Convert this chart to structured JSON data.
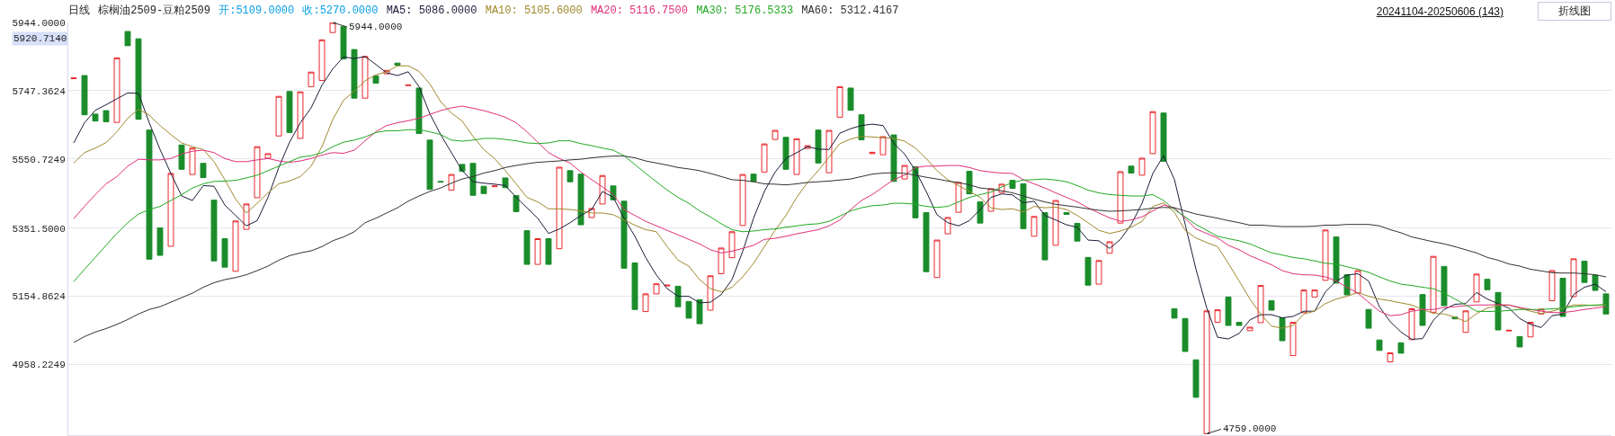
{
  "chart_data": {
    "type": "candlestick",
    "title": "日线",
    "subtitle": "棕榈油2509-豆粕2509",
    "categories": [
      null,
      null,
      null,
      null,
      null,
      null,
      null,
      null,
      null,
      null,
      null,
      null,
      null,
      null,
      null,
      null,
      null,
      null,
      null,
      null,
      null,
      null,
      null,
      null,
      null,
      null,
      null,
      null,
      null,
      null,
      null,
      null,
      null,
      null,
      null,
      null,
      null,
      null,
      null,
      null,
      null,
      null,
      null,
      null,
      null,
      null,
      null,
      null,
      null,
      null,
      null,
      null,
      null,
      null,
      null,
      null,
      null,
      null,
      null,
      null,
      null,
      null,
      null,
      null,
      null,
      null,
      null,
      null,
      null,
      null,
      null,
      null,
      null,
      null,
      null,
      null,
      null,
      null,
      null,
      null,
      null,
      null,
      null,
      null,
      null,
      null,
      null,
      null,
      null,
      null,
      null,
      null,
      null,
      null,
      null,
      null,
      null,
      null,
      null,
      null,
      null,
      null,
      null,
      null,
      null,
      null,
      null,
      null,
      null,
      null,
      null,
      null,
      null,
      null,
      null,
      null,
      null,
      null,
      null,
      null,
      null,
      null,
      null,
      null,
      null,
      null,
      null,
      null,
      null,
      null,
      null,
      null,
      null,
      null,
      null,
      null,
      null,
      null,
      null,
      null,
      null,
      null,
      null
    ],
    "ohlc": [
      [
        5782,
        5784,
        5782,
        5784
      ],
      [
        5791,
        5791,
        5678,
        5678
      ],
      [
        5680,
        5680,
        5660,
        5660
      ],
      [
        5690,
        5690,
        5658,
        5658
      ],
      [
        5656,
        5842,
        5656,
        5842
      ],
      [
        5918,
        5918,
        5877,
        5877
      ],
      [
        5897,
        5897,
        5665,
        5665
      ],
      [
        5634,
        5634,
        5262,
        5262
      ],
      [
        5352,
        5352,
        5273,
        5273
      ],
      [
        5299,
        5509,
        5299,
        5509
      ],
      [
        5591,
        5591,
        5521,
        5521
      ],
      [
        5506,
        5582,
        5506,
        5582
      ],
      [
        5538,
        5538,
        5497,
        5497
      ],
      [
        5432,
        5432,
        5257,
        5257
      ],
      [
        5321,
        5321,
        5239,
        5239
      ],
      [
        5227,
        5372,
        5227,
        5372
      ],
      [
        5348,
        5421,
        5348,
        5421
      ],
      [
        5439,
        5586,
        5439,
        5586
      ],
      [
        5553,
        5566,
        5553,
        5566
      ],
      [
        5617,
        5731,
        5617,
        5731
      ],
      [
        5745,
        5745,
        5627,
        5627
      ],
      [
        5610,
        5744,
        5610,
        5744
      ],
      [
        5759,
        5801,
        5759,
        5801
      ],
      [
        5777,
        5894,
        5777,
        5894
      ],
      [
        5915,
        5944,
        5915,
        5944
      ],
      [
        5932,
        5932,
        5839,
        5839
      ],
      [
        5866,
        5866,
        5726,
        5726
      ],
      [
        5726,
        5846,
        5726,
        5846
      ],
      [
        5790,
        5790,
        5769,
        5769
      ],
      [
        5796,
        5806,
        5796,
        5806
      ],
      [
        5827,
        5827,
        5821,
        5821
      ],
      [
        5762,
        5764,
        5762,
        5764
      ],
      [
        5755,
        5755,
        5624,
        5624
      ],
      [
        5605,
        5605,
        5463,
        5463
      ],
      [
        5486,
        5486,
        5484,
        5484
      ],
      [
        5461,
        5506,
        5461,
        5506
      ],
      [
        5535,
        5535,
        5515,
        5515
      ],
      [
        5538,
        5538,
        5446,
        5446
      ],
      [
        5472,
        5472,
        5451,
        5451
      ],
      [
        5471,
        5473,
        5471,
        5473
      ],
      [
        5496,
        5496,
        5468,
        5468
      ],
      [
        5445,
        5445,
        5399,
        5399
      ],
      [
        5344,
        5344,
        5247,
        5247
      ],
      [
        5247,
        5321,
        5247,
        5321
      ],
      [
        5321,
        5321,
        5247,
        5247
      ],
      [
        5292,
        5527,
        5292,
        5527
      ],
      [
        5517,
        5517,
        5485,
        5485
      ],
      [
        5507,
        5507,
        5361,
        5361
      ],
      [
        5382,
        5408,
        5382,
        5408
      ],
      [
        5421,
        5503,
        5421,
        5503
      ],
      [
        5473,
        5473,
        5433,
        5433
      ],
      [
        5429,
        5429,
        5236,
        5236
      ],
      [
        5251,
        5251,
        5117,
        5117
      ],
      [
        5111,
        5162,
        5111,
        5162
      ],
      [
        5162,
        5191,
        5162,
        5191
      ],
      [
        5185,
        5187,
        5185,
        5187
      ],
      [
        5184,
        5184,
        5125,
        5125
      ],
      [
        5140,
        5140,
        5092,
        5092
      ],
      [
        5145,
        5145,
        5076,
        5076
      ],
      [
        5115,
        5214,
        5115,
        5214
      ],
      [
        5220,
        5294,
        5220,
        5294
      ],
      [
        5266,
        5341,
        5266,
        5341
      ],
      [
        5359,
        5506,
        5359,
        5506
      ],
      [
        5507,
        5507,
        5486,
        5486
      ],
      [
        5513,
        5594,
        5513,
        5594
      ],
      [
        5607,
        5633,
        5607,
        5633
      ],
      [
        5613,
        5613,
        5521,
        5521
      ],
      [
        5506,
        5609,
        5506,
        5609
      ],
      [
        5581,
        5589,
        5581,
        5589
      ],
      [
        5634,
        5634,
        5539,
        5539
      ],
      [
        5511,
        5633,
        5511,
        5633
      ],
      [
        5671,
        5759,
        5671,
        5759
      ],
      [
        5755,
        5755,
        5691,
        5691
      ],
      [
        5678,
        5678,
        5606,
        5606
      ],
      [
        5566,
        5570,
        5566,
        5570
      ],
      [
        5563,
        5615,
        5563,
        5615
      ],
      [
        5620,
        5620,
        5486,
        5486
      ],
      [
        5493,
        5532,
        5493,
        5532
      ],
      [
        5528,
        5528,
        5381,
        5381
      ],
      [
        5396,
        5396,
        5226,
        5226
      ],
      [
        5209,
        5317,
        5209,
        5317
      ],
      [
        5335,
        5382,
        5335,
        5382
      ],
      [
        5397,
        5483,
        5397,
        5483
      ],
      [
        5515,
        5515,
        5450,
        5450
      ],
      [
        5427,
        5427,
        5366,
        5366
      ],
      [
        5400,
        5465,
        5400,
        5465
      ],
      [
        5454,
        5478,
        5454,
        5478
      ],
      [
        5489,
        5489,
        5466,
        5466
      ],
      [
        5479,
        5479,
        5350,
        5350
      ],
      [
        5328,
        5385,
        5328,
        5385
      ],
      [
        5396,
        5396,
        5260,
        5260
      ],
      [
        5302,
        5431,
        5302,
        5431
      ],
      [
        5396,
        5396,
        5391,
        5391
      ],
      [
        5365,
        5365,
        5314,
        5314
      ],
      [
        5267,
        5267,
        5187,
        5187
      ],
      [
        5190,
        5258,
        5190,
        5258
      ],
      [
        5279,
        5312,
        5279,
        5312
      ],
      [
        5366,
        5514,
        5366,
        5514
      ],
      [
        5530,
        5530,
        5510,
        5510
      ],
      [
        5504,
        5553,
        5504,
        5553
      ],
      [
        5566,
        5687,
        5566,
        5687
      ],
      [
        5683,
        5683,
        5544,
        5544
      ],
      [
        5119,
        5119,
        5092,
        5092
      ],
      [
        5091,
        5091,
        4996,
        4996
      ],
      [
        4972,
        4972,
        4864,
        4864
      ],
      [
        4759,
        5113,
        4759,
        5113
      ],
      [
        5080,
        5116,
        5080,
        5116
      ],
      [
        5153,
        5153,
        5071,
        5071
      ],
      [
        5080,
        5080,
        5071,
        5071
      ],
      [
        5056,
        5066,
        5056,
        5066
      ],
      [
        5079,
        5186,
        5079,
        5186
      ],
      [
        5142,
        5142,
        5115,
        5115
      ],
      [
        5093,
        5093,
        5027,
        5027
      ],
      [
        4984,
        5080,
        4984,
        5080
      ],
      [
        5108,
        5173,
        5108,
        5173
      ],
      [
        5153,
        5173,
        5153,
        5173
      ],
      [
        5201,
        5346,
        5201,
        5346
      ],
      [
        5326,
        5326,
        5193,
        5193
      ],
      [
        5217,
        5217,
        5159,
        5159
      ],
      [
        5165,
        5229,
        5165,
        5229
      ],
      [
        5117,
        5117,
        5063,
        5063
      ],
      [
        5029,
        5029,
        4999,
        4999
      ],
      [
        4966,
        4992,
        4966,
        4992
      ],
      [
        5021,
        5021,
        4991,
        4991
      ],
      [
        5030,
        5119,
        5030,
        5119
      ],
      [
        5160,
        5160,
        5071,
        5071
      ],
      [
        5109,
        5270,
        5109,
        5270
      ],
      [
        5241,
        5241,
        5128,
        5128
      ],
      [
        5095,
        5095,
        5090,
        5090
      ],
      [
        5051,
        5113,
        5051,
        5113
      ],
      [
        5139,
        5219,
        5139,
        5219
      ],
      [
        5204,
        5204,
        5174,
        5174
      ],
      [
        5166,
        5166,
        5058,
        5058
      ],
      [
        5055,
        5057,
        5055,
        5057
      ],
      [
        5039,
        5039,
        5009,
        5009
      ],
      [
        5038,
        5080,
        5038,
        5080
      ],
      [
        5104,
        5118,
        5104,
        5118
      ],
      [
        5142,
        5229,
        5142,
        5229
      ],
      [
        5207,
        5207,
        5097,
        5097
      ],
      [
        5154,
        5263,
        5154,
        5263
      ],
      [
        5256,
        5256,
        5195,
        5195
      ],
      [
        5216,
        5216,
        5172,
        5172
      ],
      [
        5162,
        5162,
        5104,
        5104
      ]
    ],
    "colors": [
      "#e8262b",
      "#1a8c2a",
      "#1a8c2a",
      "#1a8c2a",
      "#e8262b",
      "#1a8c2a",
      "#1a8c2a",
      "#1a8c2a",
      "#1a8c2a",
      "#e8262b",
      "#1a8c2a",
      "#e8262b",
      "#1a8c2a",
      "#1a8c2a",
      "#1a8c2a",
      "#e8262b",
      "#e8262b",
      "#e8262b",
      "#e8262b",
      "#e8262b",
      "#1a8c2a",
      "#e8262b",
      "#e8262b",
      "#e8262b",
      "#e8262b",
      "#1a8c2a",
      "#1a8c2a",
      "#e8262b",
      "#1a8c2a",
      "#e8262b",
      "#1a8c2a",
      "#e8262b",
      "#1a8c2a",
      "#1a8c2a",
      "#1a8c2a",
      "#e8262b",
      "#1a8c2a",
      "#1a8c2a",
      "#1a8c2a",
      "#e8262b",
      "#1a8c2a",
      "#1a8c2a",
      "#1a8c2a",
      "#e8262b",
      "#1a8c2a",
      "#e8262b",
      "#1a8c2a",
      "#1a8c2a",
      "#e8262b",
      "#e8262b",
      "#1a8c2a",
      "#1a8c2a",
      "#1a8c2a",
      "#e8262b",
      "#e8262b",
      "#e8262b",
      "#1a8c2a",
      "#1a8c2a",
      "#1a8c2a",
      "#e8262b",
      "#e8262b",
      "#e8262b",
      "#e8262b",
      "#1a8c2a",
      "#e8262b",
      "#e8262b",
      "#1a8c2a",
      "#e8262b",
      "#e8262b",
      "#1a8c2a",
      "#e8262b",
      "#e8262b",
      "#1a8c2a",
      "#1a8c2a",
      "#e8262b",
      "#e8262b",
      "#1a8c2a",
      "#e8262b",
      "#1a8c2a",
      "#1a8c2a",
      "#e8262b",
      "#e8262b",
      "#e8262b",
      "#1a8c2a",
      "#1a8c2a",
      "#e8262b",
      "#e8262b",
      "#1a8c2a",
      "#1a8c2a",
      "#e8262b",
      "#1a8c2a",
      "#e8262b",
      "#1a8c2a",
      "#1a8c2a",
      "#1a8c2a",
      "#e8262b",
      "#e8262b",
      "#e8262b",
      "#1a8c2a",
      "#e8262b",
      "#e8262b",
      "#1a8c2a",
      "#1a8c2a",
      "#1a8c2a",
      "#1a8c2a",
      "#e8262b",
      "#e8262b",
      "#1a8c2a",
      "#1a8c2a",
      "#e8262b",
      "#e8262b",
      "#1a8c2a",
      "#1a8c2a",
      "#e8262b",
      "#e8262b",
      "#e8262b",
      "#e8262b",
      "#1a8c2a",
      "#1a8c2a",
      "#e8262b",
      "#1a8c2a",
      "#1a8c2a",
      "#e8262b",
      "#1a8c2a",
      "#e8262b",
      "#1a8c2a",
      "#e8262b",
      "#1a8c2a",
      "#1a8c2a",
      "#e8262b",
      "#e8262b",
      "#1a8c2a",
      "#1a8c2a",
      "#e8262b",
      "#1a8c2a",
      "#e8262b",
      "#e8262b",
      "#e8262b",
      "#1a8c2a",
      "#e8262b",
      "#1a8c2a",
      "#1a8c2a",
      "#1a8c2a"
    ],
    "series": [
      {
        "name": "MA5: 5086.0000",
        "type": "line",
        "color": "#1c1c3a",
        "values": [
          5597,
          5655,
          5691,
          5707,
          5724,
          5741,
          5740,
          5655,
          5578,
          5509,
          5444,
          5431,
          5474,
          5472,
          5418,
          5388,
          5358,
          5373,
          5440,
          5526,
          5599,
          5655,
          5698,
          5763,
          5810,
          5845,
          5840,
          5846,
          5823,
          5799,
          5791,
          5802,
          5759,
          5681,
          5621,
          5569,
          5517,
          5485,
          5481,
          5478,
          5474,
          5440,
          5410,
          5380,
          5336,
          5349,
          5367,
          5388,
          5405,
          5457,
          5440,
          5380,
          5328,
          5267,
          5216,
          5177,
          5155,
          5155,
          5136,
          5138,
          5160,
          5203,
          5285,
          5380,
          5457,
          5513,
          5552,
          5569,
          5586,
          5579,
          5578,
          5625,
          5638,
          5647,
          5651,
          5647,
          5595,
          5565,
          5517,
          5457,
          5390,
          5367,
          5358,
          5373,
          5405,
          5440,
          5450,
          5447,
          5424,
          5429,
          5388,
          5375,
          5361,
          5354,
          5317,
          5315,
          5293,
          5319,
          5362,
          5423,
          5509,
          5560,
          5492,
          5362,
          5233,
          5121,
          5037,
          5032,
          5048,
          5087,
          5102,
          5102,
          5093,
          5097,
          5112,
          5112,
          5168,
          5199,
          5216,
          5220,
          5199,
          5125,
          5082,
          5052,
          5031,
          5033,
          5086,
          5117,
          5132,
          5134,
          5166,
          5147,
          5134,
          5121,
          5091,
          5074,
          5065,
          5099,
          5104,
          5160,
          5181,
          5190,
          5168
        ]
      },
      {
        "name": "MA10: 5105.6000",
        "type": "line",
        "color": "#a0892c",
        "values": [
          5539,
          5569,
          5582,
          5598,
          5629,
          5668,
          5694,
          5677,
          5647,
          5621,
          5597,
          5586,
          5578,
          5543,
          5491,
          5435,
          5395,
          5423,
          5453,
          5479,
          5487,
          5500,
          5530,
          5586,
          5664,
          5720,
          5746,
          5776,
          5793,
          5802,
          5819,
          5819,
          5803,
          5767,
          5716,
          5683,
          5660,
          5616,
          5578,
          5552,
          5517,
          5479,
          5440,
          5427,
          5407,
          5407,
          5405,
          5401,
          5395,
          5395,
          5390,
          5375,
          5360,
          5347,
          5341,
          5298,
          5259,
          5242,
          5203,
          5177,
          5168,
          5181,
          5211,
          5250,
          5298,
          5345,
          5388,
          5440,
          5483,
          5517,
          5556,
          5595,
          5608,
          5616,
          5614,
          5612,
          5610,
          5602,
          5582,
          5552,
          5517,
          5491,
          5474,
          5457,
          5440,
          5410,
          5405,
          5407,
          5398,
          5414,
          5410,
          5412,
          5405,
          5388,
          5367,
          5345,
          5336,
          5343,
          5354,
          5371,
          5414,
          5424,
          5397,
          5345,
          5323,
          5310,
          5298,
          5250,
          5199,
          5147,
          5104,
          5069,
          5063,
          5071,
          5104,
          5112,
          5134,
          5147,
          5155,
          5166,
          5155,
          5147,
          5142,
          5136,
          5130,
          5117,
          5106,
          5104,
          5095,
          5082,
          5105,
          5121,
          5128,
          5130,
          5121,
          5112,
          5105,
          5112,
          5121,
          5130,
          5130,
          5128,
          5130
        ]
      },
      {
        "name": "MA20: 5116.7500",
        "type": "line",
        "color": "#e0307a",
        "values": [
          5379,
          5414,
          5448,
          5479,
          5500,
          5530,
          5550,
          5548,
          5548,
          5552,
          5565,
          5573,
          5576,
          5569,
          5552,
          5543,
          5543,
          5548,
          5552,
          5545,
          5541,
          5545,
          5552,
          5562,
          5569,
          5567,
          5576,
          5603,
          5629,
          5647,
          5655,
          5661,
          5668,
          5679,
          5690,
          5698,
          5703,
          5697,
          5690,
          5681,
          5671,
          5655,
          5629,
          5599,
          5569,
          5552,
          5539,
          5513,
          5491,
          5470,
          5448,
          5405,
          5388,
          5371,
          5358,
          5345,
          5332,
          5319,
          5306,
          5289,
          5280,
          5285,
          5293,
          5302,
          5319,
          5322,
          5328,
          5335,
          5341,
          5347,
          5358,
          5375,
          5405,
          5431,
          5448,
          5470,
          5491,
          5504,
          5526,
          5530,
          5530,
          5532,
          5532,
          5526,
          5517,
          5513,
          5510,
          5509,
          5491,
          5479,
          5467,
          5453,
          5440,
          5427,
          5410,
          5395,
          5381,
          5371,
          5375,
          5384,
          5401,
          5418,
          5410,
          5380,
          5349,
          5336,
          5323,
          5302,
          5289,
          5272,
          5259,
          5246,
          5229,
          5220,
          5217,
          5216,
          5211,
          5199,
          5181,
          5164,
          5138,
          5112,
          5099,
          5102,
          5112,
          5117,
          5117,
          5123,
          5125,
          5128,
          5130,
          5130,
          5131,
          5130,
          5123,
          5117,
          5112,
          5108,
          5108,
          5112,
          5117,
          5121,
          5125
        ]
      },
      {
        "name": "MA30: 5176.5333",
        "type": "line",
        "color": "#22aa22",
        "values": [
          5197,
          5233,
          5267,
          5302,
          5336,
          5367,
          5392,
          5405,
          5414,
          5431,
          5448,
          5467,
          5479,
          5486,
          5487,
          5489,
          5496,
          5504,
          5517,
          5530,
          5543,
          5556,
          5560,
          5569,
          5586,
          5599,
          5605,
          5614,
          5627,
          5632,
          5632,
          5635,
          5635,
          5629,
          5621,
          5605,
          5602,
          5605,
          5610,
          5610,
          5607,
          5603,
          5597,
          5595,
          5597,
          5603,
          5603,
          5595,
          5589,
          5582,
          5576,
          5560,
          5535,
          5509,
          5485,
          5461,
          5440,
          5423,
          5401,
          5384,
          5364,
          5347,
          5341,
          5343,
          5347,
          5349,
          5354,
          5358,
          5362,
          5364,
          5371,
          5386,
          5401,
          5410,
          5416,
          5418,
          5423,
          5423,
          5420,
          5414,
          5411,
          5414,
          5427,
          5440,
          5448,
          5455,
          5470,
          5483,
          5490,
          5491,
          5493,
          5490,
          5485,
          5474,
          5461,
          5453,
          5448,
          5446,
          5444,
          5444,
          5448,
          5431,
          5405,
          5384,
          5362,
          5345,
          5328,
          5321,
          5315,
          5306,
          5293,
          5280,
          5274,
          5267,
          5263,
          5257,
          5250,
          5248,
          5240,
          5233,
          5224,
          5211,
          5199,
          5190,
          5186,
          5181,
          5177,
          5164,
          5147,
          5130,
          5112,
          5111,
          5112,
          5114,
          5117,
          5117,
          5117,
          5119,
          5121,
          5125,
          5128,
          5130,
          5131
        ]
      },
      {
        "name": "MA60: 5312.4167",
        "type": "line",
        "color": "#333333",
        "values": [
          5022,
          5039,
          5052,
          5062,
          5074,
          5088,
          5104,
          5117,
          5125,
          5138,
          5151,
          5164,
          5181,
          5194,
          5203,
          5209,
          5217,
          5229,
          5242,
          5259,
          5272,
          5280,
          5286,
          5298,
          5315,
          5326,
          5341,
          5367,
          5380,
          5395,
          5410,
          5429,
          5444,
          5457,
          5467,
          5481,
          5493,
          5500,
          5510,
          5517,
          5526,
          5532,
          5537,
          5541,
          5543,
          5545,
          5548,
          5550,
          5554,
          5557,
          5559,
          5559,
          5554,
          5545,
          5539,
          5533,
          5526,
          5522,
          5517,
          5509,
          5500,
          5491,
          5489,
          5485,
          5479,
          5478,
          5476,
          5479,
          5483,
          5485,
          5487,
          5490,
          5493,
          5500,
          5507,
          5510,
          5511,
          5509,
          5504,
          5498,
          5493,
          5487,
          5483,
          5476,
          5467,
          5464,
          5459,
          5453,
          5444,
          5435,
          5427,
          5420,
          5416,
          5412,
          5407,
          5403,
          5400,
          5401,
          5403,
          5405,
          5409,
          5411,
          5410,
          5401,
          5392,
          5386,
          5380,
          5373,
          5367,
          5360,
          5360,
          5358,
          5356,
          5356,
          5356,
          5357,
          5360,
          5360,
          5362,
          5362,
          5362,
          5358,
          5347,
          5338,
          5326,
          5319,
          5312,
          5306,
          5298,
          5289,
          5280,
          5267,
          5259,
          5248,
          5242,
          5233,
          5228,
          5223,
          5222,
          5222,
          5220,
          5217,
          5211
        ]
      }
    ],
    "ylim": [
      4755,
      5944
    ],
    "yticks": [
      {
        "value": 4958.2249,
        "label": "4958.2249"
      },
      {
        "value": 5154.8624,
        "label": "5154.8624"
      },
      {
        "value": 5351.5,
        "label": "5351.5000"
      },
      {
        "value": 5550.7249,
        "label": "5550.7249"
      },
      {
        "value": 5747.3624,
        "label": "5747.3624"
      },
      {
        "value": 5944,
        "label": "5944.0000"
      }
    ],
    "grid": "y",
    "legend": "top left",
    "tick_labels": "y",
    "annotations": [
      "开:5109.0000",
      "收:5270.0000",
      "20241104-20250606 (143)",
      "折线图",
      "5944.0000",
      "4759.0000",
      "5920.7140"
    ]
  }
}
